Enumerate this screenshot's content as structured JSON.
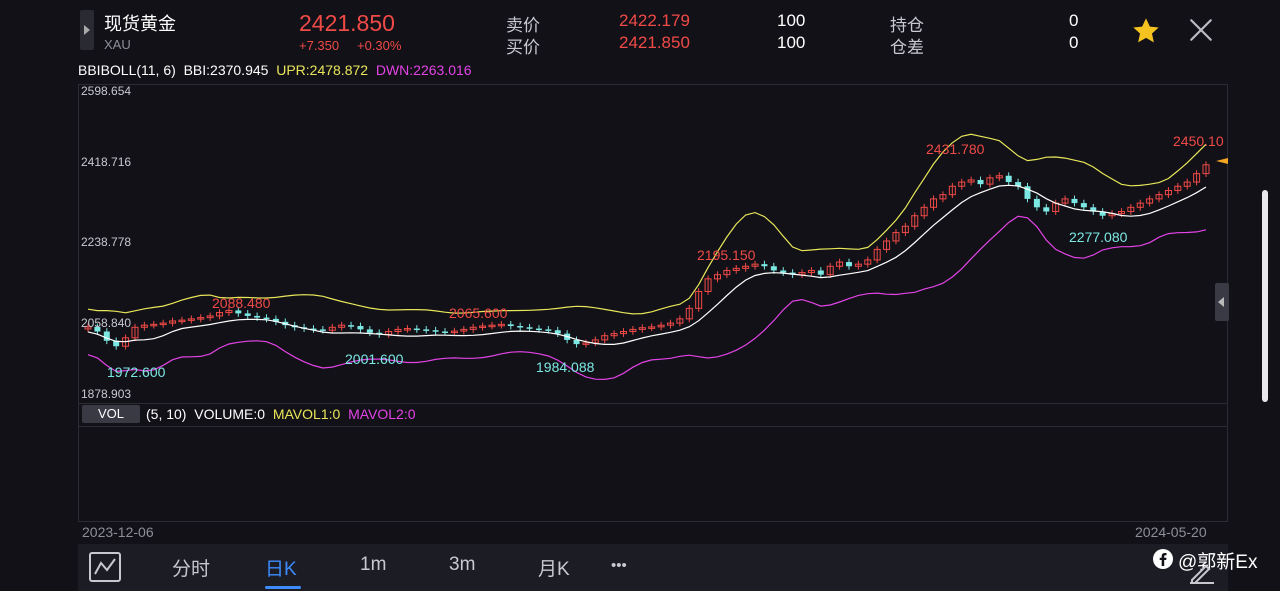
{
  "header": {
    "name": "现货黄金",
    "code": "XAU",
    "price": "2421.850",
    "change": "+7.350",
    "change_pct": "+0.30%",
    "ask_label": "卖价",
    "ask_price": "2422.179",
    "ask_qty": "100",
    "bid_label": "买价",
    "bid_price": "2421.850",
    "bid_qty": "100",
    "position_label": "持仓",
    "position_value": "0",
    "spread_label": "仓差",
    "spread_value": "0"
  },
  "indicator": {
    "name": "BBIBOLL(11, 6)",
    "bbi": "BBI:2370.945",
    "upr": "UPR:2478.872",
    "dwn": "DWN:2263.016"
  },
  "yaxis": [
    "2598.654",
    "2418.716",
    "2238.778",
    "2058.840",
    "1878.903"
  ],
  "annotations": {
    "high1": "2088.480",
    "high2": "2065.600",
    "high3": "2195.150",
    "high4": "2431.780",
    "high5": "2450.10",
    "low1": "1972.600",
    "low2": "2001.600",
    "low3": "1984.088",
    "low4": "2277.080"
  },
  "volume": {
    "badge": "VOL",
    "params": "(5, 10)",
    "volume": "VOLUME:0",
    "mavol1": "MAVOL1:0",
    "mavol2": "MAVOL2:0"
  },
  "dates": {
    "start": "2023-12-06",
    "end": "2024-05-20"
  },
  "tabs": {
    "fenshi": "分时",
    "rik": "日K",
    "m1": "1m",
    "m3": "3m",
    "yuek": "月K",
    "more": "•••"
  },
  "watermark": "@郭新Ex",
  "icons": {
    "star": "star-icon",
    "close": "close-icon",
    "chart": "line-chart-icon",
    "edit": "edit-pen-icon"
  },
  "colors": {
    "up": "#f04a47",
    "down": "#7ce8e3",
    "upper_band": "#e9e65a",
    "lower_band": "#e343e6",
    "middle": "#ffffff",
    "accent": "#3d8bff",
    "star": "#f5c320"
  }
}
